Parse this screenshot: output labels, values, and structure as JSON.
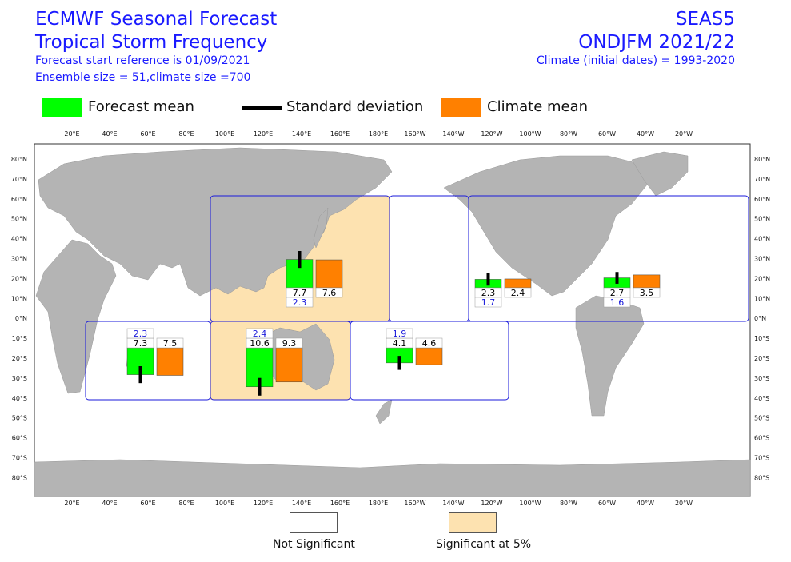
{
  "header": {
    "title_line1": "ECMWF Seasonal Forecast",
    "title_line2": "Tropical Storm Frequency",
    "start_ref": "Forecast start reference is 01/09/2021",
    "ensemble": "Ensemble size = 51,climate size =700",
    "system": "SEAS5",
    "period": "ONDJFM 2021/22",
    "climate": "Climate (initial dates) = 1993-2020"
  },
  "legend": {
    "forecast_mean": "Forecast mean",
    "std_dev": "Standard deviation",
    "climate_mean": "Climate mean",
    "colors": {
      "forecast": "#00ff00",
      "climate": "#ff8000",
      "std": "#000000",
      "significant": "#fde2b0",
      "land": "#b4b4b4",
      "region_border": "#1a1adb"
    }
  },
  "bottom_legend": {
    "not_significant": "Not Significant",
    "significant": "Significant at 5%"
  },
  "axes": {
    "lon_labels": [
      "20°E",
      "40°E",
      "60°E",
      "80°E",
      "100°E",
      "120°E",
      "140°E",
      "160°E",
      "180°E",
      "160°W",
      "140°W",
      "120°W",
      "100°W",
      "80°W",
      "60°W",
      "40°W",
      "20°W"
    ],
    "lat_labels": [
      "80°N",
      "70°N",
      "60°N",
      "50°N",
      "40°N",
      "30°N",
      "20°N",
      "10°N",
      "0°N",
      "10°S",
      "20°S",
      "30°S",
      "40°S",
      "50°S",
      "60°S",
      "70°S",
      "80°S"
    ]
  },
  "regions": [
    {
      "name": "Western North Pacific",
      "significant": true,
      "forecast": "7.7",
      "climate": "7.6",
      "std": "2.3"
    },
    {
      "name": "Eastern North Pacific",
      "significant": false,
      "forecast": "2.3",
      "climate": "2.4",
      "std": "1.7"
    },
    {
      "name": "Atlantic",
      "significant": false,
      "forecast": "2.7",
      "climate": "3.5",
      "std": "1.6"
    },
    {
      "name": "South Indian Ocean",
      "significant": false,
      "forecast": "7.3",
      "climate": "7.5",
      "std": "2.3"
    },
    {
      "name": "Australia",
      "significant": true,
      "forecast": "10.6",
      "climate": "9.3",
      "std": "2.4"
    },
    {
      "name": "South Pacific",
      "significant": false,
      "forecast": "4.1",
      "climate": "4.6",
      "std": "1.9"
    }
  ]
}
